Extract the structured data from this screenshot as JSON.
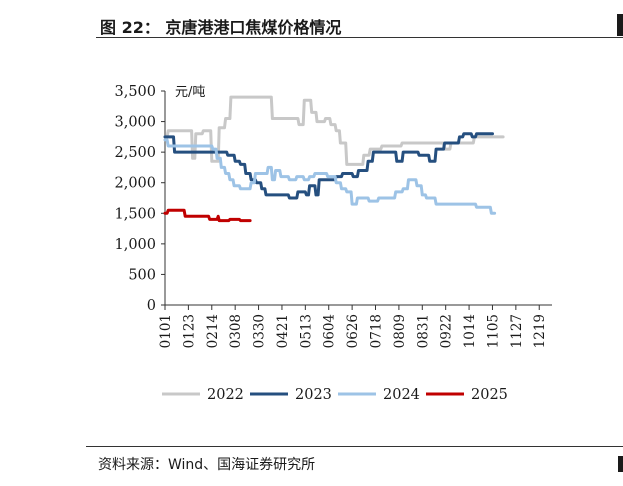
{
  "header": {
    "title": "图 22：  京唐港港口焦煤价格情况"
  },
  "footer": {
    "source": "资料来源：Wind、国海证券研究所"
  },
  "chart_data": {
    "type": "line",
    "title": "京唐港港口焦煤价格情况",
    "unit_label": "元/吨",
    "xlabel": "",
    "ylabel": "元/吨",
    "ylim": [
      0,
      3500
    ],
    "yticks": [
      0,
      500,
      1000,
      1500,
      2000,
      2500,
      3000,
      3500
    ],
    "ytick_labels": [
      "0",
      "500",
      "1,000",
      "1,500",
      "2,000",
      "2,500",
      "3,000",
      "3,500"
    ],
    "x_days": [
      0,
      22,
      44,
      66,
      88,
      110,
      132,
      154,
      176,
      198,
      220,
      242,
      264,
      286,
      308,
      330,
      352
    ],
    "xtick_labels": [
      "0101",
      "0123",
      "0214",
      "0308",
      "0330",
      "0421",
      "0513",
      "0604",
      "0626",
      "0718",
      "0809",
      "0831",
      "0922",
      "1014",
      "1105",
      "1127",
      "1219"
    ],
    "grid": false,
    "legend_position": "bottom",
    "series": [
      {
        "name": "2022",
        "color": "#c8c8c8",
        "points": [
          [
            0,
            2750
          ],
          [
            2,
            2750
          ],
          [
            3,
            2850
          ],
          [
            25,
            2850
          ],
          [
            26,
            2400
          ],
          [
            28,
            2400
          ],
          [
            29,
            2800
          ],
          [
            35,
            2800
          ],
          [
            36,
            2850
          ],
          [
            43,
            2850
          ],
          [
            44,
            2350
          ],
          [
            50,
            2350
          ],
          [
            51,
            2900
          ],
          [
            56,
            2900
          ],
          [
            57,
            3050
          ],
          [
            61,
            3050
          ],
          [
            62,
            3400
          ],
          [
            100,
            3400
          ],
          [
            101,
            3050
          ],
          [
            125,
            3050
          ],
          [
            126,
            2950
          ],
          [
            130,
            2950
          ],
          [
            131,
            3350
          ],
          [
            137,
            3350
          ],
          [
            138,
            3150
          ],
          [
            142,
            3150
          ],
          [
            143,
            3000
          ],
          [
            150,
            3000
          ],
          [
            151,
            3050
          ],
          [
            155,
            3050
          ],
          [
            156,
            2950
          ],
          [
            160,
            2950
          ],
          [
            161,
            2850
          ],
          [
            164,
            2850
          ],
          [
            165,
            2650
          ],
          [
            170,
            2650
          ],
          [
            171,
            2300
          ],
          [
            186,
            2300
          ],
          [
            187,
            2450
          ],
          [
            192,
            2450
          ],
          [
            193,
            2550
          ],
          [
            203,
            2550
          ],
          [
            204,
            2600
          ],
          [
            222,
            2600
          ],
          [
            223,
            2650
          ],
          [
            262,
            2650
          ],
          [
            263,
            2550
          ],
          [
            268,
            2550
          ],
          [
            269,
            2650
          ],
          [
            290,
            2650
          ],
          [
            291,
            2750
          ],
          [
            318,
            2750
          ]
        ]
      },
      {
        "name": "2023",
        "color": "#254f7f",
        "points": [
          [
            0,
            2750
          ],
          [
            8,
            2750
          ],
          [
            9,
            2500
          ],
          [
            58,
            2500
          ],
          [
            59,
            2450
          ],
          [
            65,
            2450
          ],
          [
            66,
            2350
          ],
          [
            70,
            2350
          ],
          [
            71,
            2300
          ],
          [
            75,
            2300
          ],
          [
            76,
            2150
          ],
          [
            80,
            2150
          ],
          [
            81,
            2050
          ],
          [
            85,
            2050
          ],
          [
            86,
            2000
          ],
          [
            90,
            2000
          ],
          [
            91,
            1900
          ],
          [
            94,
            1900
          ],
          [
            95,
            1800
          ],
          [
            116,
            1800
          ],
          [
            117,
            1750
          ],
          [
            124,
            1750
          ],
          [
            125,
            1850
          ],
          [
            132,
            1850
          ],
          [
            133,
            1800
          ],
          [
            135,
            1800
          ],
          [
            136,
            1950
          ],
          [
            141,
            1950
          ],
          [
            142,
            1800
          ],
          [
            144,
            1800
          ],
          [
            145,
            2050
          ],
          [
            160,
            2050
          ],
          [
            161,
            2100
          ],
          [
            166,
            2100
          ],
          [
            167,
            2150
          ],
          [
            176,
            2150
          ],
          [
            177,
            2100
          ],
          [
            181,
            2100
          ],
          [
            182,
            2200
          ],
          [
            190,
            2200
          ],
          [
            191,
            2350
          ],
          [
            195,
            2350
          ],
          [
            196,
            2500
          ],
          [
            217,
            2500
          ],
          [
            218,
            2350
          ],
          [
            223,
            2350
          ],
          [
            224,
            2500
          ],
          [
            238,
            2500
          ],
          [
            239,
            2450
          ],
          [
            248,
            2450
          ],
          [
            249,
            2350
          ],
          [
            254,
            2350
          ],
          [
            255,
            2550
          ],
          [
            262,
            2550
          ],
          [
            263,
            2650
          ],
          [
            276,
            2650
          ],
          [
            277,
            2750
          ],
          [
            280,
            2750
          ],
          [
            281,
            2800
          ],
          [
            288,
            2800
          ],
          [
            289,
            2750
          ],
          [
            292,
            2750
          ],
          [
            293,
            2800
          ],
          [
            308,
            2800
          ]
        ]
      },
      {
        "name": "2024",
        "color": "#9dc3e6",
        "points": [
          [
            0,
            2700
          ],
          [
            2,
            2700
          ],
          [
            3,
            2600
          ],
          [
            44,
            2600
          ],
          [
            45,
            2550
          ],
          [
            48,
            2550
          ],
          [
            49,
            2400
          ],
          [
            52,
            2400
          ],
          [
            53,
            2250
          ],
          [
            56,
            2250
          ],
          [
            57,
            2150
          ],
          [
            60,
            2150
          ],
          [
            61,
            2050
          ],
          [
            64,
            2050
          ],
          [
            65,
            1950
          ],
          [
            70,
            1950
          ],
          [
            71,
            1900
          ],
          [
            80,
            1900
          ],
          [
            81,
            2000
          ],
          [
            84,
            2000
          ],
          [
            85,
            2150
          ],
          [
            96,
            2150
          ],
          [
            97,
            2250
          ],
          [
            100,
            2250
          ],
          [
            101,
            2050
          ],
          [
            103,
            2050
          ],
          [
            104,
            2200
          ],
          [
            108,
            2200
          ],
          [
            109,
            2100
          ],
          [
            116,
            2100
          ],
          [
            117,
            2050
          ],
          [
            123,
            2050
          ],
          [
            124,
            2100
          ],
          [
            130,
            2100
          ],
          [
            131,
            2050
          ],
          [
            135,
            2050
          ],
          [
            136,
            2100
          ],
          [
            140,
            2100
          ],
          [
            141,
            2150
          ],
          [
            152,
            2150
          ],
          [
            153,
            2100
          ],
          [
            160,
            2100
          ],
          [
            161,
            2000
          ],
          [
            165,
            2000
          ],
          [
            166,
            1900
          ],
          [
            170,
            1900
          ],
          [
            171,
            1850
          ],
          [
            175,
            1850
          ],
          [
            176,
            1650
          ],
          [
            180,
            1650
          ],
          [
            181,
            1750
          ],
          [
            191,
            1750
          ],
          [
            192,
            1700
          ],
          [
            200,
            1700
          ],
          [
            201,
            1750
          ],
          [
            216,
            1750
          ],
          [
            217,
            1850
          ],
          [
            223,
            1850
          ],
          [
            224,
            1900
          ],
          [
            228,
            1900
          ],
          [
            229,
            2050
          ],
          [
            236,
            2050
          ],
          [
            237,
            1950
          ],
          [
            241,
            1950
          ],
          [
            242,
            1800
          ],
          [
            245,
            1800
          ],
          [
            246,
            1750
          ],
          [
            254,
            1750
          ],
          [
            255,
            1650
          ],
          [
            292,
            1650
          ],
          [
            293,
            1600
          ],
          [
            306,
            1600
          ],
          [
            307,
            1500
          ],
          [
            310,
            1500
          ]
        ]
      },
      {
        "name": "2025",
        "color": "#c00000",
        "points": [
          [
            0,
            1500
          ],
          [
            2,
            1500
          ],
          [
            3,
            1550
          ],
          [
            18,
            1550
          ],
          [
            19,
            1450
          ],
          [
            40,
            1450
          ],
          [
            41,
            1450
          ],
          [
            42,
            1400
          ],
          [
            49,
            1400
          ],
          [
            50,
            1450
          ],
          [
            51,
            1380
          ],
          [
            60,
            1380
          ],
          [
            61,
            1400
          ],
          [
            70,
            1400
          ],
          [
            71,
            1380
          ],
          [
            80,
            1380
          ]
        ]
      }
    ]
  }
}
